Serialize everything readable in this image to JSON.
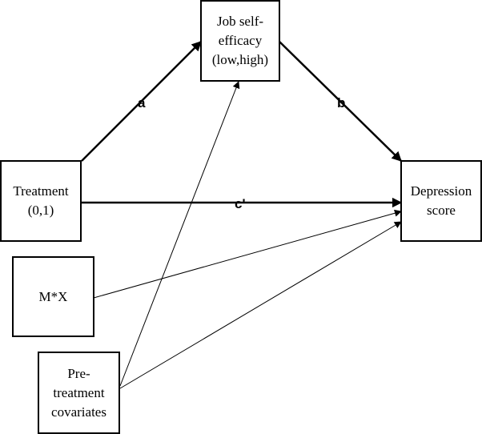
{
  "nodes": {
    "mediator": "Job self-\nefficacy\n(low,high)",
    "treatment": "Treatment\n(0,1)",
    "outcome": "Depression\nscore",
    "interaction": "M*X",
    "covariates": "Pre-\ntreatment\ncovariates"
  },
  "edges": {
    "a": "a",
    "b": "b",
    "c_prime": "c'"
  },
  "colors": {
    "stroke": "#000000",
    "background": "#ffffff"
  }
}
